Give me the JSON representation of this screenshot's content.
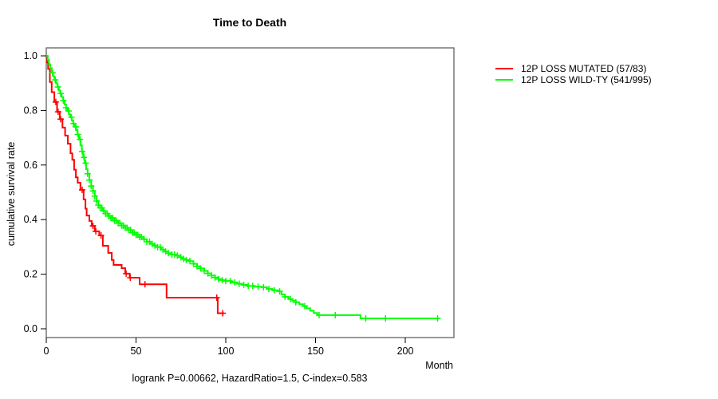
{
  "chart_data": {
    "type": "line",
    "subtype": "kaplan-meier-step-survival",
    "title": "Time to Death",
    "xlabel": "Month",
    "ylabel": "cumulative survival rate",
    "annotation": "logrank P=0.00662, HazardRatio=1.5, C-index=0.583",
    "x_ticks": [
      0,
      50,
      100,
      150,
      200
    ],
    "y_ticks": [
      1.0,
      0.8,
      0.6,
      0.4,
      0.2,
      0.0
    ],
    "xlim": [
      0,
      227
    ],
    "ylim": [
      0,
      1.0
    ],
    "grid": false,
    "legend_position": "right-outside",
    "series": [
      {
        "name": "12P LOSS MUTATED (57/83)",
        "color": "#ff0000",
        "steps": [
          [
            0,
            1.0
          ],
          [
            0.5,
            0.976
          ],
          [
            1,
            0.952
          ],
          [
            2,
            0.904
          ],
          [
            3,
            0.867
          ],
          [
            4.5,
            0.831
          ],
          [
            6,
            0.795
          ],
          [
            7.5,
            0.768
          ],
          [
            9,
            0.737
          ],
          [
            10.5,
            0.708
          ],
          [
            12,
            0.678
          ],
          [
            13.5,
            0.643
          ],
          [
            14.5,
            0.619
          ],
          [
            15.5,
            0.583
          ],
          [
            16.5,
            0.555
          ],
          [
            17.5,
            0.535
          ],
          [
            19,
            0.509
          ],
          [
            20.8,
            0.474
          ],
          [
            21.8,
            0.44
          ],
          [
            22.5,
            0.415
          ],
          [
            24,
            0.395
          ],
          [
            25.3,
            0.377
          ],
          [
            27,
            0.357
          ],
          [
            29.5,
            0.342
          ],
          [
            31.5,
            0.304
          ],
          [
            34.5,
            0.278
          ],
          [
            36.5,
            0.252
          ],
          [
            37.5,
            0.234
          ],
          [
            42,
            0.222
          ],
          [
            44,
            0.202
          ],
          [
            46.5,
            0.187
          ],
          [
            52,
            0.163
          ],
          [
            67,
            0.114
          ],
          [
            95.5,
            0.057
          ],
          [
            99,
            0.057
          ]
        ],
        "censor_months": [
          5.3,
          6.6,
          8,
          20,
          26,
          27.6,
          30.5,
          44.5,
          46.8,
          55,
          95,
          98.3
        ]
      },
      {
        "name": "12P LOSS WILD-TY (541/995)",
        "color": "#00ff00",
        "steps": [
          [
            0,
            1.0
          ],
          [
            0.8,
            0.985
          ],
          [
            1.5,
            0.969
          ],
          [
            2.2,
            0.955
          ],
          [
            3,
            0.938
          ],
          [
            3.8,
            0.925
          ],
          [
            4.6,
            0.912
          ],
          [
            5.4,
            0.899
          ],
          [
            6.2,
            0.886
          ],
          [
            7,
            0.873
          ],
          [
            7.8,
            0.862
          ],
          [
            8.6,
            0.849
          ],
          [
            9.4,
            0.836
          ],
          [
            10.2,
            0.822
          ],
          [
            11,
            0.81
          ],
          [
            11.8,
            0.798
          ],
          [
            12.6,
            0.786
          ],
          [
            13.4,
            0.775
          ],
          [
            14.2,
            0.763
          ],
          [
            15,
            0.752
          ],
          [
            15.8,
            0.74
          ],
          [
            16.6,
            0.728
          ],
          [
            17.4,
            0.712
          ],
          [
            18.2,
            0.694
          ],
          [
            19,
            0.672
          ],
          [
            19.8,
            0.65
          ],
          [
            20.6,
            0.628
          ],
          [
            21.4,
            0.607
          ],
          [
            22.2,
            0.585
          ],
          [
            23,
            0.568
          ],
          [
            24,
            0.545
          ],
          [
            25,
            0.523
          ],
          [
            26,
            0.505
          ],
          [
            27,
            0.486
          ],
          [
            28,
            0.468
          ],
          [
            29,
            0.453
          ],
          [
            30,
            0.443
          ],
          [
            31.5,
            0.432
          ],
          [
            33,
            0.422
          ],
          [
            34.5,
            0.413
          ],
          [
            36,
            0.406
          ],
          [
            38,
            0.396
          ],
          [
            40,
            0.387
          ],
          [
            42,
            0.378
          ],
          [
            44,
            0.37
          ],
          [
            46,
            0.362
          ],
          [
            48,
            0.352
          ],
          [
            50,
            0.344
          ],
          [
            52,
            0.336
          ],
          [
            54,
            0.328
          ],
          [
            56,
            0.319
          ],
          [
            58,
            0.311
          ],
          [
            60,
            0.305
          ],
          [
            62,
            0.299
          ],
          [
            64,
            0.29
          ],
          [
            66,
            0.283
          ],
          [
            68,
            0.277
          ],
          [
            70,
            0.272
          ],
          [
            72,
            0.268
          ],
          [
            74,
            0.262
          ],
          [
            76,
            0.256
          ],
          [
            78,
            0.252
          ],
          [
            80,
            0.248
          ],
          [
            82,
            0.238
          ],
          [
            84,
            0.229
          ],
          [
            86,
            0.221
          ],
          [
            88,
            0.212
          ],
          [
            90,
            0.203
          ],
          [
            92,
            0.195
          ],
          [
            94,
            0.188
          ],
          [
            96,
            0.182
          ],
          [
            98,
            0.178
          ],
          [
            100,
            0.175
          ],
          [
            103,
            0.17
          ],
          [
            106,
            0.165
          ],
          [
            109,
            0.161
          ],
          [
            112,
            0.157
          ],
          [
            116,
            0.154
          ],
          [
            120,
            0.152
          ],
          [
            123,
            0.146
          ],
          [
            126,
            0.141
          ],
          [
            129,
            0.137
          ],
          [
            131,
            0.126
          ],
          [
            133,
            0.117
          ],
          [
            135,
            0.109
          ],
          [
            137,
            0.103
          ],
          [
            139,
            0.097
          ],
          [
            141,
            0.09
          ],
          [
            143,
            0.083
          ],
          [
            145,
            0.075
          ],
          [
            147,
            0.066
          ],
          [
            149,
            0.058
          ],
          [
            151,
            0.05
          ],
          [
            175,
            0.038
          ],
          [
            219,
            0.038
          ]
        ],
        "censor_months": [
          3.5,
          5,
          6.5,
          8,
          9.5,
          11,
          12.5,
          14,
          15.2,
          16.4,
          17.6,
          18.8,
          20,
          21,
          22,
          23,
          24,
          25,
          26,
          27,
          28,
          29,
          30,
          31,
          32,
          33,
          34,
          35,
          36,
          37,
          38,
          39,
          40,
          41,
          42,
          43,
          44,
          45,
          46,
          47,
          48,
          49,
          50,
          51,
          52,
          53,
          54.5,
          56,
          57.5,
          59,
          60.5,
          62,
          63.5,
          65,
          66.5,
          68,
          70,
          71.5,
          73,
          75,
          76.5,
          78,
          80,
          82,
          84,
          86,
          88,
          90,
          92,
          94,
          96,
          98,
          100,
          102.5,
          105,
          107.5,
          110,
          112.5,
          115,
          118,
          121,
          124,
          127,
          130,
          133,
          136,
          139,
          144,
          152,
          161,
          178,
          189,
          218
        ]
      }
    ]
  }
}
